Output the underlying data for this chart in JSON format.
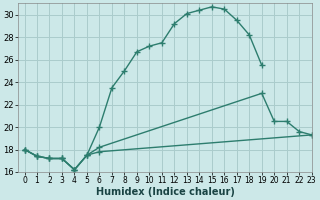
{
  "xlabel": "Humidex (Indice chaleur)",
  "bg_color": "#cce8e8",
  "grid_color": "#aacccc",
  "line_color": "#2d7d6e",
  "xlim": [
    -0.5,
    23
  ],
  "ylim": [
    16,
    31
  ],
  "xticks": [
    0,
    1,
    2,
    3,
    4,
    5,
    6,
    7,
    8,
    9,
    10,
    11,
    12,
    13,
    14,
    15,
    16,
    17,
    18,
    19,
    20,
    21,
    22,
    23
  ],
  "yticks": [
    16,
    18,
    20,
    22,
    24,
    26,
    28,
    30
  ],
  "series": [
    {
      "x": [
        0,
        1,
        2,
        3,
        4,
        5,
        6,
        7,
        8,
        9,
        10,
        11,
        12,
        13,
        14,
        15,
        16,
        17,
        18,
        19
      ],
      "y": [
        18.0,
        17.4,
        17.2,
        17.2,
        16.2,
        17.5,
        20.0,
        23.5,
        25.0,
        26.7,
        27.2,
        27.5,
        29.2,
        30.1,
        30.4,
        30.7,
        30.5,
        29.5,
        28.2,
        25.5
      ]
    },
    {
      "x": [
        0,
        1,
        2,
        3,
        4,
        5,
        6,
        19,
        20,
        21,
        22,
        23
      ],
      "y": [
        18.0,
        17.4,
        17.2,
        17.2,
        16.2,
        17.5,
        18.2,
        23.0,
        20.5,
        20.5,
        19.6,
        19.3
      ]
    },
    {
      "x": [
        0,
        1,
        2,
        3,
        4,
        5,
        6,
        19,
        20,
        21,
        22,
        23
      ],
      "y": [
        18.0,
        17.4,
        17.2,
        17.2,
        16.2,
        17.5,
        17.8,
        19.3,
        19.6,
        19.6,
        19.5,
        19.3
      ]
    }
  ]
}
